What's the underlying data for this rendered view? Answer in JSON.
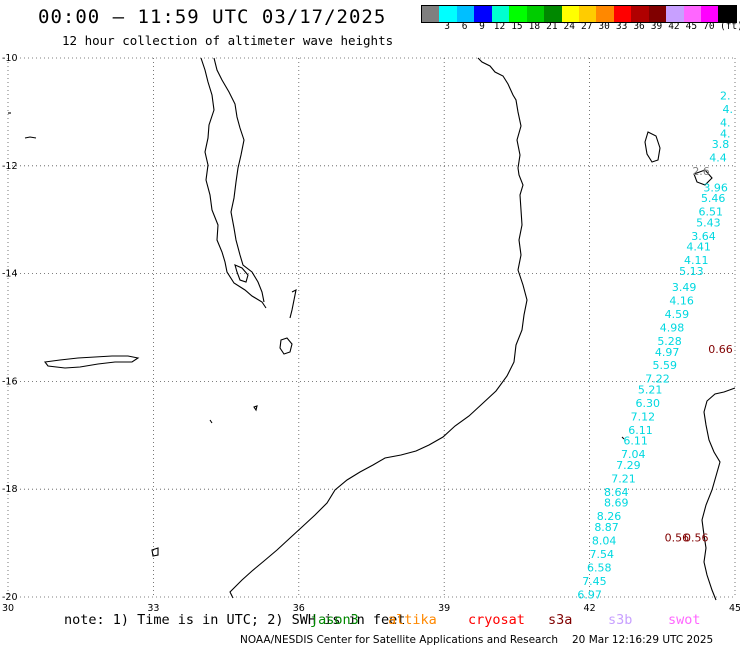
{
  "header": {
    "title": "00:00 – 11:59 UTC 03/17/2025",
    "subtitle": "12 hour collection of altimeter wave heights"
  },
  "legend": {
    "unit": "(ft)",
    "colors": [
      "#7f7f7f",
      "#00ffff",
      "#00bfff",
      "#0000ff",
      "#00ffd0",
      "#00ff00",
      "#00cc00",
      "#008800",
      "#ffff00",
      "#ffcc00",
      "#ff8800",
      "#ff0000",
      "#b00000",
      "#800000",
      "#c8a0ff",
      "#ff66ff",
      "#ff00ff",
      "#000000"
    ],
    "labels": [
      "3",
      "6",
      "9",
      "12",
      "15",
      "18",
      "21",
      "24",
      "27",
      "30",
      "33",
      "36",
      "39",
      "42",
      "45",
      "70"
    ]
  },
  "axes": {
    "lat_labels": [
      "-10",
      "-12",
      "-14",
      "-16",
      "-18",
      "-20"
    ],
    "lon_labels": [
      "30",
      "33",
      "36",
      "39",
      "42",
      "45"
    ]
  },
  "notes": {
    "text": "note: 1) Time is in UTC; 2) SWH is in feet"
  },
  "satellites": [
    {
      "name": "jason3",
      "color": "#008800"
    },
    {
      "name": "altika",
      "color": "#ff8800"
    },
    {
      "name": "cryosat",
      "color": "#ff0000"
    },
    {
      "name": "s3a",
      "color": "#800000"
    },
    {
      "name": "s3b",
      "color": "#c8a0ff"
    },
    {
      "name": "swot",
      "color": "#ff66ff"
    }
  ],
  "credit": {
    "org": "NOAA/NESDIS Center for Satellite Applications and Research",
    "timestamp": "20 Mar 12:16:29 UTC 2025"
  },
  "chart_data": {
    "type": "scatter",
    "title": "00:00 – 11:59 UTC 03/17/2025",
    "xlim": [
      30,
      45
    ],
    "ylim": [
      -20,
      -10
    ],
    "grid": true,
    "series": [
      {
        "name": "cyan",
        "color": "#00d8e0",
        "points": [
          {
            "lon": 44.8,
            "lat": -10.7,
            "v": "2."
          },
          {
            "lon": 44.85,
            "lat": -10.95,
            "v": "4."
          },
          {
            "lon": 44.8,
            "lat": -11.2,
            "v": "4."
          },
          {
            "lon": 44.8,
            "lat": -11.4,
            "v": "4."
          },
          {
            "lon": 44.7,
            "lat": -11.6,
            "v": "3.8"
          },
          {
            "lon": 44.65,
            "lat": -11.85,
            "v": "4.4"
          },
          {
            "lon": 44.6,
            "lat": -12.4,
            "v": "3.96"
          },
          {
            "lon": 44.55,
            "lat": -12.6,
            "v": "5.46"
          },
          {
            "lon": 44.5,
            "lat": -12.85,
            "v": "6.51"
          },
          {
            "lon": 44.45,
            "lat": -13.05,
            "v": "5.43"
          },
          {
            "lon": 44.35,
            "lat": -13.3,
            "v": "3.64"
          },
          {
            "lon": 44.25,
            "lat": -13.5,
            "v": "4.41"
          },
          {
            "lon": 44.2,
            "lat": -13.75,
            "v": "4.11"
          },
          {
            "lon": 44.1,
            "lat": -13.95,
            "v": "5.13"
          },
          {
            "lon": 43.95,
            "lat": -14.25,
            "v": "3.49"
          },
          {
            "lon": 43.9,
            "lat": -14.5,
            "v": "4.16"
          },
          {
            "lon": 43.8,
            "lat": -14.75,
            "v": "4.59"
          },
          {
            "lon": 43.7,
            "lat": -15.0,
            "v": "4.98"
          },
          {
            "lon": 43.65,
            "lat": -15.25,
            "v": "5.28"
          },
          {
            "lon": 43.6,
            "lat": -15.45,
            "v": "4.97"
          },
          {
            "lon": 43.55,
            "lat": -15.7,
            "v": "5.59"
          },
          {
            "lon": 43.4,
            "lat": -15.95,
            "v": "7.22"
          },
          {
            "lon": 43.25,
            "lat": -16.15,
            "v": "5.21"
          },
          {
            "lon": 43.2,
            "lat": -16.4,
            "v": "6.30"
          },
          {
            "lon": 43.1,
            "lat": -16.65,
            "v": "7.12"
          },
          {
            "lon": 43.05,
            "lat": -16.9,
            "v": "6.11"
          },
          {
            "lon": 42.95,
            "lat": -17.1,
            "v": "6.11"
          },
          {
            "lon": 42.9,
            "lat": -17.35,
            "v": "7.04"
          },
          {
            "lon": 42.8,
            "lat": -17.55,
            "v": "7.29"
          },
          {
            "lon": 42.7,
            "lat": -17.8,
            "v": "7.21"
          },
          {
            "lon": 42.55,
            "lat": -18.05,
            "v": "8.64"
          },
          {
            "lon": 42.55,
            "lat": -18.25,
            "v": "8.69"
          },
          {
            "lon": 42.4,
            "lat": -18.5,
            "v": "8.26"
          },
          {
            "lon": 42.35,
            "lat": -18.7,
            "v": "8.87"
          },
          {
            "lon": 42.3,
            "lat": -18.95,
            "v": "8.04"
          },
          {
            "lon": 42.25,
            "lat": -19.2,
            "v": "7.54"
          },
          {
            "lon": 42.2,
            "lat": -19.45,
            "v": "6.58"
          },
          {
            "lon": 42.1,
            "lat": -19.7,
            "v": "7.45"
          },
          {
            "lon": 42.0,
            "lat": -19.95,
            "v": "6.97"
          }
        ]
      },
      {
        "name": "grey",
        "color": "#808080",
        "points": [
          {
            "lon": 44.3,
            "lat": -12.1,
            "v": "2.6"
          }
        ]
      },
      {
        "name": "darkred",
        "color": "#800000",
        "points": [
          {
            "lon": 44.7,
            "lat": -15.4,
            "v": "0.66"
          },
          {
            "lon": 43.8,
            "lat": -18.9,
            "v": "0.56"
          },
          {
            "lon": 44.2,
            "lat": -18.9,
            "v": "0.56"
          }
        ]
      }
    ]
  }
}
